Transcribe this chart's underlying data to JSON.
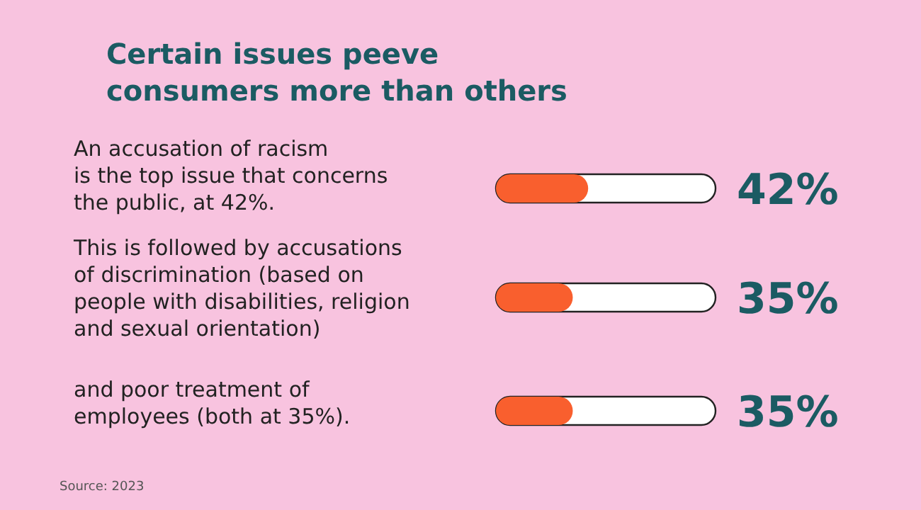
{
  "chart_data": {
    "type": "bar",
    "orientation": "horizontal",
    "title": "Certain issues peeve\nconsumers more than others",
    "categories": [
      "An accusation of racism\nis the top issue that concerns\nthe public, at 42%.",
      "This is followed by accusations\nof discrimination (based on\npeople with disabilities, religion\nand sexual orientation)",
      "and poor treatment of\nemployees (both at 35%)."
    ],
    "values": [
      42,
      35,
      35
    ],
    "color": "#f95f2e",
    "xlim": [
      0,
      100
    ],
    "value_labels": [
      "42%",
      "35%",
      "35%"
    ],
    "annotations": [
      "Source: 2023"
    ]
  }
}
